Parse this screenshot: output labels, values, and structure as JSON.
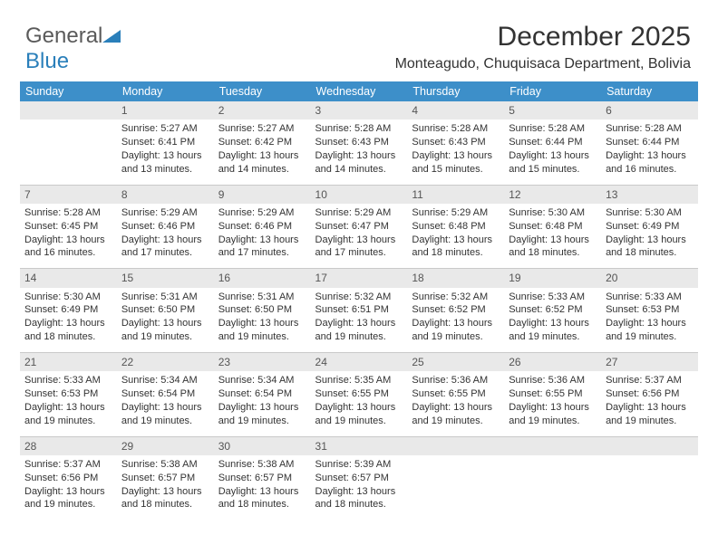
{
  "logo": {
    "part1": "General",
    "part2": "Blue"
  },
  "title": "December 2025",
  "subtitle": "Monteagudo, Chuquisaca Department, Bolivia",
  "header_bg": "#3d8fc9",
  "header_fg": "#ffffff",
  "daynum_bg": "#e9e9e9",
  "border_color": "#c9c9c9",
  "days": [
    "Sunday",
    "Monday",
    "Tuesday",
    "Wednesday",
    "Thursday",
    "Friday",
    "Saturday"
  ],
  "firstDayOffset": 1,
  "cells": [
    {
      "n": 1,
      "sr": "5:27 AM",
      "ss": "6:41 PM",
      "dl": "13 hours and 13 minutes."
    },
    {
      "n": 2,
      "sr": "5:27 AM",
      "ss": "6:42 PM",
      "dl": "13 hours and 14 minutes."
    },
    {
      "n": 3,
      "sr": "5:28 AM",
      "ss": "6:43 PM",
      "dl": "13 hours and 14 minutes."
    },
    {
      "n": 4,
      "sr": "5:28 AM",
      "ss": "6:43 PM",
      "dl": "13 hours and 15 minutes."
    },
    {
      "n": 5,
      "sr": "5:28 AM",
      "ss": "6:44 PM",
      "dl": "13 hours and 15 minutes."
    },
    {
      "n": 6,
      "sr": "5:28 AM",
      "ss": "6:44 PM",
      "dl": "13 hours and 16 minutes."
    },
    {
      "n": 7,
      "sr": "5:28 AM",
      "ss": "6:45 PM",
      "dl": "13 hours and 16 minutes."
    },
    {
      "n": 8,
      "sr": "5:29 AM",
      "ss": "6:46 PM",
      "dl": "13 hours and 17 minutes."
    },
    {
      "n": 9,
      "sr": "5:29 AM",
      "ss": "6:46 PM",
      "dl": "13 hours and 17 minutes."
    },
    {
      "n": 10,
      "sr": "5:29 AM",
      "ss": "6:47 PM",
      "dl": "13 hours and 17 minutes."
    },
    {
      "n": 11,
      "sr": "5:29 AM",
      "ss": "6:48 PM",
      "dl": "13 hours and 18 minutes."
    },
    {
      "n": 12,
      "sr": "5:30 AM",
      "ss": "6:48 PM",
      "dl": "13 hours and 18 minutes."
    },
    {
      "n": 13,
      "sr": "5:30 AM",
      "ss": "6:49 PM",
      "dl": "13 hours and 18 minutes."
    },
    {
      "n": 14,
      "sr": "5:30 AM",
      "ss": "6:49 PM",
      "dl": "13 hours and 18 minutes."
    },
    {
      "n": 15,
      "sr": "5:31 AM",
      "ss": "6:50 PM",
      "dl": "13 hours and 19 minutes."
    },
    {
      "n": 16,
      "sr": "5:31 AM",
      "ss": "6:50 PM",
      "dl": "13 hours and 19 minutes."
    },
    {
      "n": 17,
      "sr": "5:32 AM",
      "ss": "6:51 PM",
      "dl": "13 hours and 19 minutes."
    },
    {
      "n": 18,
      "sr": "5:32 AM",
      "ss": "6:52 PM",
      "dl": "13 hours and 19 minutes."
    },
    {
      "n": 19,
      "sr": "5:33 AM",
      "ss": "6:52 PM",
      "dl": "13 hours and 19 minutes."
    },
    {
      "n": 20,
      "sr": "5:33 AM",
      "ss": "6:53 PM",
      "dl": "13 hours and 19 minutes."
    },
    {
      "n": 21,
      "sr": "5:33 AM",
      "ss": "6:53 PM",
      "dl": "13 hours and 19 minutes."
    },
    {
      "n": 22,
      "sr": "5:34 AM",
      "ss": "6:54 PM",
      "dl": "13 hours and 19 minutes."
    },
    {
      "n": 23,
      "sr": "5:34 AM",
      "ss": "6:54 PM",
      "dl": "13 hours and 19 minutes."
    },
    {
      "n": 24,
      "sr": "5:35 AM",
      "ss": "6:55 PM",
      "dl": "13 hours and 19 minutes."
    },
    {
      "n": 25,
      "sr": "5:36 AM",
      "ss": "6:55 PM",
      "dl": "13 hours and 19 minutes."
    },
    {
      "n": 26,
      "sr": "5:36 AM",
      "ss": "6:55 PM",
      "dl": "13 hours and 19 minutes."
    },
    {
      "n": 27,
      "sr": "5:37 AM",
      "ss": "6:56 PM",
      "dl": "13 hours and 19 minutes."
    },
    {
      "n": 28,
      "sr": "5:37 AM",
      "ss": "6:56 PM",
      "dl": "13 hours and 19 minutes."
    },
    {
      "n": 29,
      "sr": "5:38 AM",
      "ss": "6:57 PM",
      "dl": "13 hours and 18 minutes."
    },
    {
      "n": 30,
      "sr": "5:38 AM",
      "ss": "6:57 PM",
      "dl": "13 hours and 18 minutes."
    },
    {
      "n": 31,
      "sr": "5:39 AM",
      "ss": "6:57 PM",
      "dl": "13 hours and 18 minutes."
    }
  ],
  "labels": {
    "sunrise": "Sunrise: ",
    "sunset": "Sunset: ",
    "daylight": "Daylight: "
  }
}
